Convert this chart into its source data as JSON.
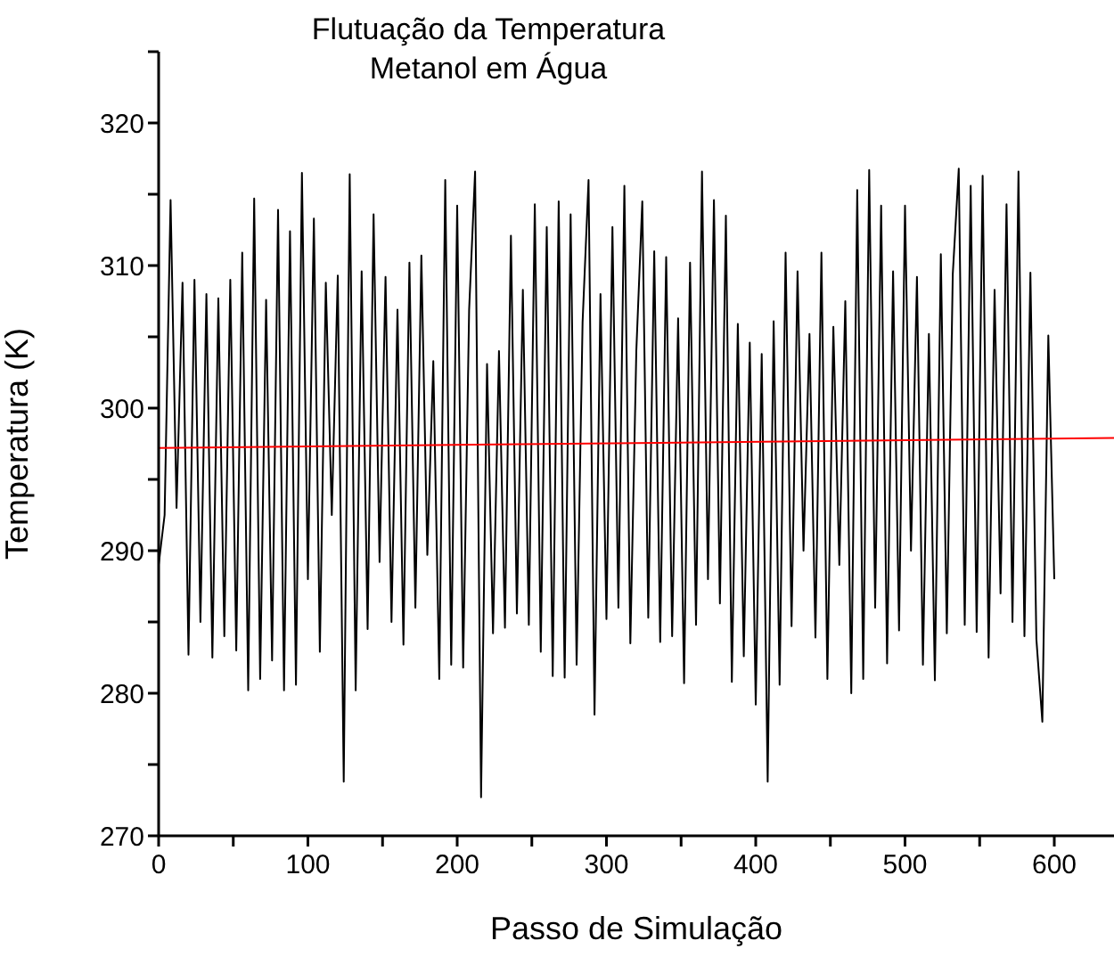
{
  "chart_data": {
    "type": "line",
    "title": "Flutuação da Temperatura\nMetanol em Água",
    "xlabel": "Passo de Simulação",
    "ylabel": "Temperatura (K)",
    "xlim": [
      0,
      640
    ],
    "ylim": [
      270,
      325
    ],
    "xticks": [
      0,
      {
        "value": 50,
        "label": null
      },
      100,
      {
        "value": 150,
        "label": null
      },
      200,
      {
        "value": 250,
        "label": null
      },
      300,
      {
        "value": 350,
        "label": null
      },
      400,
      {
        "value": 450,
        "label": null
      },
      500,
      {
        "value": 550,
        "label": null
      },
      600
    ],
    "yticks": [
      270,
      {
        "value": 275,
        "label": null
      },
      280,
      {
        "value": 285,
        "label": null
      },
      290,
      {
        "value": 295,
        "label": null
      },
      300,
      {
        "value": 305,
        "label": null
      },
      310,
      {
        "value": 315,
        "label": null
      },
      320,
      {
        "value": 325,
        "label": null
      }
    ],
    "grid": false,
    "marker": "none",
    "line_style": "solid",
    "x": [
      0,
      4,
      8,
      12,
      16,
      20,
      24,
      28,
      32,
      36,
      40,
      44,
      48,
      52,
      56,
      60,
      64,
      68,
      72,
      76,
      80,
      84,
      88,
      92,
      96,
      100,
      104,
      108,
      112,
      116,
      120,
      124,
      128,
      132,
      136,
      140,
      144,
      148,
      152,
      156,
      160,
      164,
      168,
      172,
      176,
      180,
      184,
      188,
      192,
      196,
      200,
      204,
      208,
      212,
      216,
      220,
      224,
      228,
      232,
      236,
      240,
      244,
      248,
      252,
      256,
      260,
      264,
      268,
      272,
      276,
      280,
      284,
      288,
      292,
      296,
      300,
      304,
      308,
      312,
      316,
      320,
      324,
      328,
      332,
      336,
      340,
      344,
      348,
      352,
      356,
      360,
      364,
      368,
      372,
      376,
      380,
      384,
      388,
      392,
      396,
      400,
      404,
      408,
      412,
      416,
      420,
      424,
      428,
      432,
      436,
      440,
      444,
      448,
      452,
      456,
      460,
      464,
      468,
      472,
      476,
      480,
      484,
      488,
      492,
      496,
      500,
      504,
      508,
      512,
      516,
      520,
      524,
      528,
      532,
      536,
      540,
      544,
      548,
      552,
      556,
      560,
      564,
      568,
      572,
      576,
      580,
      584,
      588,
      592,
      596,
      600
    ],
    "series": [
      {
        "color": "#000000",
        "values": [
          289,
          292.5,
          314.6,
          293,
          308.8,
          282.7,
          309,
          285,
          308,
          282.5,
          307.7,
          284,
          309,
          283,
          310.9,
          280.2,
          314.7,
          281,
          307.6,
          282.3,
          313.9,
          280.2,
          312.4,
          280.6,
          316.5,
          288,
          313.3,
          282.9,
          308.8,
          292.5,
          309.3,
          273.8,
          316.4,
          280.2,
          309.6,
          284.5,
          313.6,
          289.2,
          309.2,
          285,
          306.9,
          283.4,
          310.2,
          286,
          310.7,
          289.7,
          303.3,
          281,
          316,
          282,
          314.2,
          281.8,
          306.9,
          316.6,
          272.7,
          303.1,
          284.2,
          304,
          284.6,
          312.1,
          285.6,
          308.3,
          284.8,
          314.3,
          282.9,
          312.7,
          281.2,
          314.5,
          281.1,
          313.6,
          282,
          306,
          316,
          278.5,
          308,
          285.2,
          312.7,
          286,
          315.6,
          283.5,
          304,
          314.5,
          285.3,
          311,
          283.6,
          310.6,
          284,
          306.3,
          280.7,
          310.2,
          284.8,
          316.6,
          288,
          314.6,
          286.3,
          313.5,
          280.8,
          305.9,
          282.6,
          304.6,
          279.2,
          303.8,
          273.8,
          306.1,
          280.6,
          310.9,
          284.7,
          309.6,
          290,
          305.2,
          283.9,
          310.9,
          281,
          305.7,
          289,
          307.5,
          280,
          315.3,
          281,
          316.7,
          286,
          314.2,
          282.1,
          309.6,
          284.4,
          314.2,
          290,
          309.2,
          282,
          305.2,
          280.9,
          310.8,
          284.2,
          309.4,
          316.8,
          284.8,
          315.6,
          284.3,
          316.3,
          282.5,
          308.3,
          287,
          314.3,
          285,
          316.6,
          284,
          309.5,
          283.8,
          278,
          305.1,
          288
        ]
      },
      {
        "type": "line",
        "color": "#ff0000",
        "x": [
          0,
          640
        ],
        "values": [
          297.2,
          297.9
        ]
      }
    ]
  }
}
